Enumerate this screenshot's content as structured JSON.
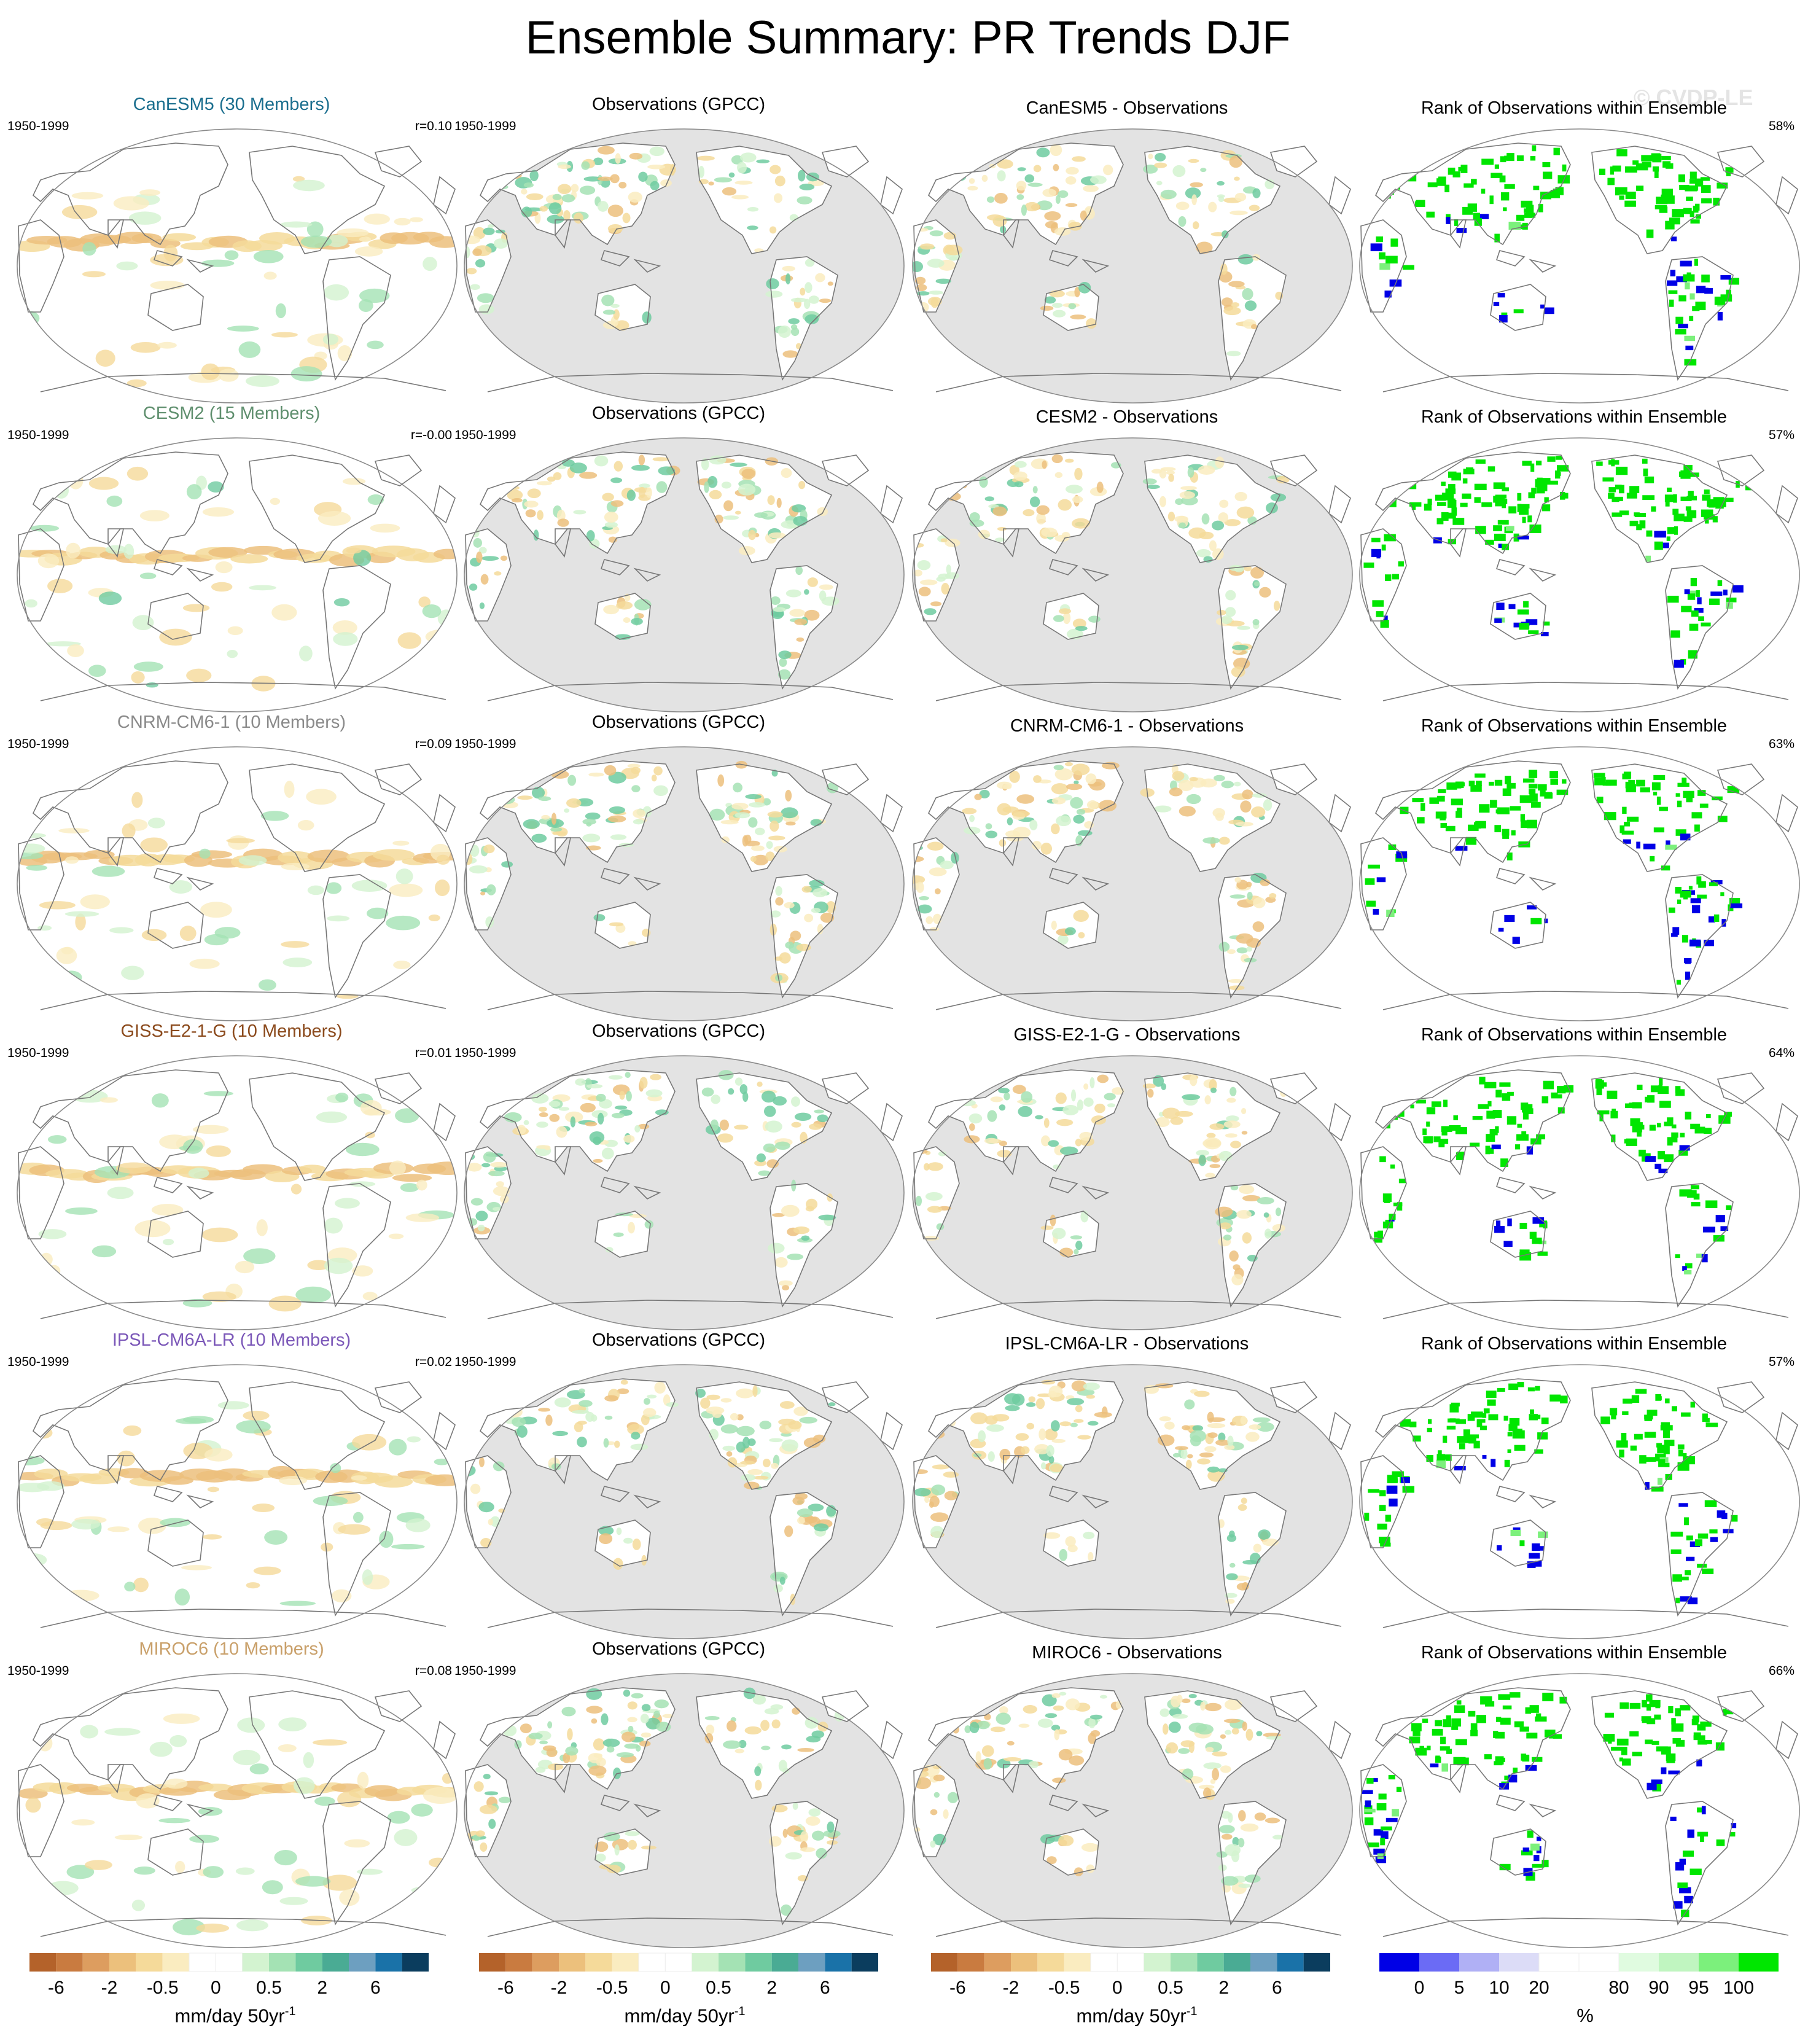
{
  "title": "Ensemble Summary: PR Trends DJF",
  "watermark": "© CVDP-LE",
  "obs_title": "Observations (GPCC)",
  "rank_title": "Rank of Observations within Ensemble",
  "period": "1950-1999",
  "rows": [
    {
      "model_title": "CanESM5 (30 Members)",
      "model_color": "#1a6e8e",
      "r": "r=0.10",
      "diff_title": "CanESM5 - Observations",
      "rank_pct": "58%"
    },
    {
      "model_title": "CESM2 (15 Members)",
      "model_color": "#5f8f6e",
      "r": "r=-0.00",
      "diff_title": "CESM2 - Observations",
      "rank_pct": "57%"
    },
    {
      "model_title": "CNRM-CM6-1 (10 Members)",
      "model_color": "#8a8a8a",
      "r": "r=0.09",
      "diff_title": "CNRM-CM6-1 - Observations",
      "rank_pct": "63%"
    },
    {
      "model_title": "GISS-E2-1-G (10 Members)",
      "model_color": "#8b4a1c",
      "r": "r=0.01",
      "diff_title": "GISS-E2-1-G - Observations",
      "rank_pct": "64%"
    },
    {
      "model_title": "IPSL-CM6A-LR (10 Members)",
      "model_color": "#7b57b8",
      "r": "r=0.02",
      "diff_title": "IPSL-CM6A-LR - Observations",
      "rank_pct": "57%"
    },
    {
      "model_title": "MIROC6 (10 Members)",
      "model_color": "#c9a06a",
      "r": "r=0.08",
      "diff_title": "MIROC6 - Observations",
      "rank_pct": "66%"
    }
  ],
  "trend_colorbar": {
    "colors": [
      "#b4622a",
      "#c97b40",
      "#dd9d5f",
      "#ecc07c",
      "#f5da9a",
      "#faecc0",
      "#ffffff",
      "#ffffff",
      "#d3f3d0",
      "#a4e2b4",
      "#6fcba0",
      "#4aab94",
      "#6d9fc0",
      "#1a72a8",
      "#0b3d5e"
    ],
    "tick_labels": [
      "-6",
      "-2",
      "-0.5",
      "0",
      "0.5",
      "2",
      "6"
    ],
    "tick_positions": [
      1,
      3,
      5,
      7,
      9,
      11,
      13
    ],
    "unit": "mm/day 50yr",
    "unit_sup": "-1"
  },
  "rank_colorbar": {
    "colors": [
      "#0000e6",
      "#6b6bf5",
      "#b0b0f5",
      "#dcdcf7",
      "#ffffff",
      "#ffffff",
      "#e0fbe0",
      "#c0f5c0",
      "#7cf07c",
      "#00e600"
    ],
    "tick_labels": [
      "0",
      "5",
      "10",
      "20",
      "80",
      "90",
      "95",
      "100"
    ],
    "tick_positions": [
      1,
      2,
      3,
      4,
      6,
      7,
      8,
      9
    ],
    "unit": "%"
  },
  "chart_data": {
    "type": "heatmap",
    "title": "Ensemble Summary: PR Trends DJF",
    "projection": "Robinson, Pacific-centered",
    "layout": "6 rows x 4 columns",
    "columns": [
      "model ensemble-mean trend",
      "Observations (GPCC)",
      "Model - Observations",
      "Rank of Observations within Ensemble"
    ],
    "period": "1950-1999",
    "trend_levels": [
      -6,
      -4,
      -2,
      -1,
      -0.5,
      -0.2,
      0,
      0.2,
      0.5,
      1,
      2,
      4,
      6
    ],
    "trend_unit": "mm/day 50yr-1",
    "rank_levels": [
      0,
      5,
      10,
      20,
      80,
      90,
      95,
      100
    ],
    "rank_unit": "%",
    "pattern_correlations": {
      "CanESM5": 0.1,
      "CESM2": -0.0,
      "CNRM-CM6-1": 0.09,
      "GISS-E2-1-G": 0.01,
      "IPSL-CM6A-LR": 0.02,
      "MIROC6": 0.08
    },
    "rank_percent_within_bounds": {
      "CanESM5": 58,
      "CESM2": 57,
      "CNRM-CM6-1": 63,
      "GISS-E2-1-G": 64,
      "IPSL-CM6A-LR": 57,
      "MIROC6": 66
    }
  }
}
